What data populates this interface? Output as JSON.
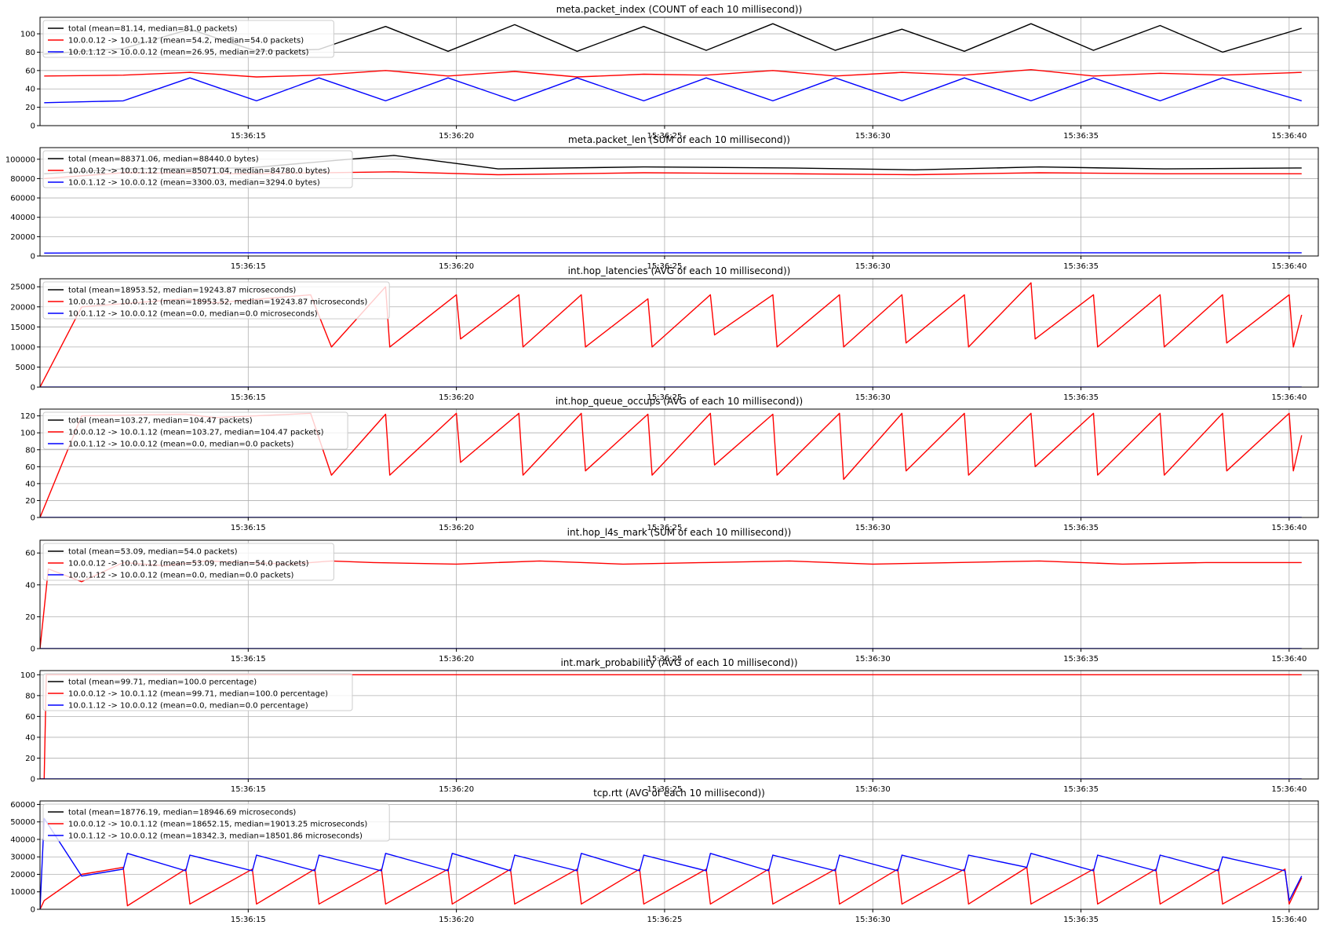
{
  "x_ticks": [
    "15:36:15",
    "15:36:20",
    "15:36:25",
    "15:36:30",
    "15:36:35",
    "15:36:40"
  ],
  "colors": {
    "total": "#000000",
    "fwd": "#ff0000",
    "rev": "#0000ff"
  },
  "chart_data": [
    {
      "type": "line",
      "title": "meta.packet_index (COUNT of each 10 millisecond))",
      "ylim": [
        0,
        118
      ],
      "yticks": [
        0,
        20,
        40,
        60,
        80,
        100
      ],
      "legend_position": "upper-left",
      "grid": true,
      "series": [
        {
          "name": "total (mean=81.14, median=81.0 packets)",
          "color": "#000000",
          "x": [
            "15:36:10.1",
            "15:36:12.0",
            "15:36:13.6",
            "15:36:15.2",
            "15:36:16.7",
            "15:36:18.3",
            "15:36:19.8",
            "15:36:21.4",
            "15:36:22.9",
            "15:36:24.5",
            "15:36:26.0",
            "15:36:27.6",
            "15:36:29.1",
            "15:36:30.7",
            "15:36:32.2",
            "15:36:33.8",
            "15:36:35.3",
            "15:36:36.9",
            "15:36:38.4",
            "15:36:40.3"
          ],
          "y": [
            78,
            84,
            105,
            81,
            83,
            108,
            81,
            110,
            81,
            108,
            82,
            111,
            82,
            105,
            81,
            111,
            82,
            109,
            80,
            106
          ]
        },
        {
          "name": "10.0.0.12 -> 10.0.1.12 (mean=54.2, median=54.0 packets)",
          "color": "#ff0000",
          "x": [
            "15:36:10.1",
            "15:36:12.0",
            "15:36:13.6",
            "15:36:15.2",
            "15:36:16.7",
            "15:36:18.3",
            "15:36:19.8",
            "15:36:21.4",
            "15:36:22.9",
            "15:36:24.5",
            "15:36:26.0",
            "15:36:27.6",
            "15:36:29.1",
            "15:36:30.7",
            "15:36:32.2",
            "15:36:33.8",
            "15:36:35.3",
            "15:36:36.9",
            "15:36:38.4",
            "15:36:40.3"
          ],
          "y": [
            54,
            55,
            58,
            53,
            55,
            60,
            54,
            59,
            53,
            56,
            55,
            60,
            54,
            58,
            55,
            61,
            54,
            57,
            55,
            58
          ]
        },
        {
          "name": "10.0.1.12 -> 10.0.0.12 (mean=26.95, median=27.0 packets)",
          "color": "#0000ff",
          "x": [
            "15:36:10.1",
            "15:36:12.0",
            "15:36:13.6",
            "15:36:15.2",
            "15:36:16.7",
            "15:36:18.3",
            "15:36:19.8",
            "15:36:21.4",
            "15:36:22.9",
            "15:36:24.5",
            "15:36:26.0",
            "15:36:27.6",
            "15:36:29.1",
            "15:36:30.7",
            "15:36:32.2",
            "15:36:33.8",
            "15:36:35.3",
            "15:36:36.9",
            "15:36:38.4",
            "15:36:40.3"
          ],
          "y": [
            25,
            27,
            52,
            27,
            52,
            27,
            52,
            27,
            52,
            27,
            52,
            27,
            52,
            27,
            52,
            27,
            52,
            27,
            52,
            27
          ]
        }
      ]
    },
    {
      "type": "line",
      "title": "meta.packet_len (SUM of each 10 millisecond))",
      "ylim": [
        0,
        112000
      ],
      "yticks": [
        0,
        20000,
        40000,
        60000,
        80000,
        100000
      ],
      "legend_position": "upper-left",
      "grid": true,
      "series": [
        {
          "name": "total (mean=88371.06, median=88440.0 bytes)",
          "color": "#000000",
          "x": [
            "15:36:10.1",
            "15:36:12.0",
            "15:36:15.0",
            "15:36:18.5",
            "15:36:21.0",
            "15:36:24.5",
            "15:36:28.0",
            "15:36:31.0",
            "15:36:34.0",
            "15:36:37.0",
            "15:36:40.3"
          ],
          "y": [
            85000,
            90000,
            91000,
            104000,
            90000,
            92000,
            91000,
            89000,
            92000,
            90000,
            91000
          ]
        },
        {
          "name": "10.0.0.12 -> 10.0.1.12 (mean=85071.04, median=84780.0 bytes)",
          "color": "#ff0000",
          "x": [
            "15:36:10.1",
            "15:36:12.0",
            "15:36:15.0",
            "15:36:18.5",
            "15:36:21.0",
            "15:36:24.5",
            "15:36:28.0",
            "15:36:31.0",
            "15:36:34.0",
            "15:36:37.0",
            "15:36:40.3"
          ],
          "y": [
            80000,
            86000,
            85000,
            87000,
            84000,
            86000,
            85000,
            84000,
            86000,
            85000,
            85000
          ]
        },
        {
          "name": "10.0.1.12 -> 10.0.0.12 (mean=3300.03, median=3294.0 bytes)",
          "color": "#0000ff",
          "x": [
            "15:36:10.1",
            "15:36:12.0",
            "15:36:15.0",
            "15:36:18.5",
            "15:36:21.0",
            "15:36:24.5",
            "15:36:28.0",
            "15:36:31.0",
            "15:36:34.0",
            "15:36:37.0",
            "15:36:40.3"
          ],
          "y": [
            3000,
            3300,
            3300,
            3300,
            3300,
            3300,
            3300,
            3300,
            3300,
            3300,
            3300
          ]
        }
      ]
    },
    {
      "type": "line",
      "title": "int.hop_latencies (AVG of each 10 millisecond))",
      "ylim": [
        0,
        27000
      ],
      "yticks": [
        0,
        5000,
        10000,
        15000,
        20000,
        25000
      ],
      "legend_position": "upper-left",
      "grid": true,
      "series": [
        {
          "name": "total (mean=18953.52, median=19243.87 microseconds)",
          "color": "#000000",
          "x": [],
          "y": []
        },
        {
          "name": "10.0.0.12 -> 10.0.1.12 (mean=18953.52, median=19243.87 microseconds)",
          "color": "#ff0000",
          "x": [
            "15:36:10.0",
            "15:36:11.0",
            "15:36:13.5",
            "15:36:14.2",
            "15:36:16.5",
            "15:36:17.0",
            "15:36:18.3",
            "15:36:18.4",
            "15:36:20.0",
            "15:36:20.1",
            "15:36:21.5",
            "15:36:21.6",
            "15:36:23.0",
            "15:36:23.1",
            "15:36:24.6",
            "15:36:24.7",
            "15:36:26.1",
            "15:36:26.2",
            "15:36:27.6",
            "15:36:27.7",
            "15:36:29.2",
            "15:36:29.3",
            "15:36:30.7",
            "15:36:30.8",
            "15:36:32.2",
            "15:36:32.3",
            "15:36:33.8",
            "15:36:33.9",
            "15:36:35.3",
            "15:36:35.4",
            "15:36:36.9",
            "15:36:37.0",
            "15:36:38.4",
            "15:36:38.5",
            "15:36:40.0",
            "15:36:40.1",
            "15:36:40.3"
          ],
          "y": [
            0,
            20000,
            22000,
            21000,
            23000,
            10000,
            25000,
            10000,
            23000,
            12000,
            23000,
            10000,
            23000,
            10000,
            22000,
            10000,
            23000,
            13000,
            23000,
            10000,
            23000,
            10000,
            23000,
            11000,
            23000,
            10000,
            26000,
            12000,
            23000,
            10000,
            23000,
            10000,
            23000,
            11000,
            23000,
            10000,
            18000
          ]
        },
        {
          "name": "10.0.1.12 -> 10.0.0.12 (mean=0.0, median=0.0 microseconds)",
          "color": "#0000ff",
          "x": [
            "15:36:10.0",
            "15:36:40.3"
          ],
          "y": [
            0,
            0
          ]
        }
      ]
    },
    {
      "type": "line",
      "title": "int.hop_queue_occups (AVG of each 10 millisecond))",
      "ylim": [
        0,
        128
      ],
      "yticks": [
        0,
        20,
        40,
        60,
        80,
        100,
        120
      ],
      "legend_position": "upper-left",
      "grid": true,
      "series": [
        {
          "name": "total (mean=103.27, median=104.47 packets)",
          "color": "#000000",
          "x": [],
          "y": []
        },
        {
          "name": "10.0.0.12 -> 10.0.1.12 (mean=103.27, median=104.47 packets)",
          "color": "#ff0000",
          "x": [
            "15:36:10.0",
            "15:36:11.0",
            "15:36:13.5",
            "15:36:14.2",
            "15:36:16.5",
            "15:36:17.0",
            "15:36:18.3",
            "15:36:18.4",
            "15:36:20.0",
            "15:36:20.1",
            "15:36:21.5",
            "15:36:21.6",
            "15:36:23.0",
            "15:36:23.1",
            "15:36:24.6",
            "15:36:24.7",
            "15:36:26.1",
            "15:36:26.2",
            "15:36:27.6",
            "15:36:27.7",
            "15:36:29.2",
            "15:36:29.3",
            "15:36:30.7",
            "15:36:30.8",
            "15:36:32.2",
            "15:36:32.3",
            "15:36:33.8",
            "15:36:33.9",
            "15:36:35.3",
            "15:36:35.4",
            "15:36:36.9",
            "15:36:37.0",
            "15:36:38.4",
            "15:36:38.5",
            "15:36:40.0",
            "15:36:40.1",
            "15:36:40.3"
          ],
          "y": [
            0,
            120,
            122,
            118,
            123,
            50,
            122,
            50,
            123,
            65,
            123,
            50,
            123,
            55,
            122,
            50,
            123,
            62,
            122,
            50,
            123,
            45,
            123,
            55,
            123,
            50,
            123,
            60,
            123,
            50,
            123,
            50,
            123,
            55,
            123,
            55,
            97
          ]
        },
        {
          "name": "10.0.1.12 -> 10.0.0.12 (mean=0.0, median=0.0 packets)",
          "color": "#0000ff",
          "x": [
            "15:36:10.0",
            "15:36:40.3"
          ],
          "y": [
            0,
            0
          ]
        }
      ]
    },
    {
      "type": "line",
      "title": "int.hop_l4s_mark (SUM of each 10 millisecond))",
      "ylim": [
        0,
        68
      ],
      "yticks": [
        0,
        20,
        40,
        60
      ],
      "legend_position": "upper-left",
      "grid": true,
      "series": [
        {
          "name": "total (mean=53.09, median=54.0 packets)",
          "color": "#000000",
          "x": [],
          "y": []
        },
        {
          "name": "10.0.0.12 -> 10.0.1.12 (mean=53.09, median=54.0 packets)",
          "color": "#ff0000",
          "x": [
            "15:36:10.0",
            "15:36:10.2",
            "15:36:11.0",
            "15:36:12.0",
            "15:36:13.0",
            "15:36:14.0",
            "15:36:15.0",
            "15:36:16.0",
            "15:36:17.0",
            "15:36:18.0",
            "15:36:20.0",
            "15:36:22.0",
            "15:36:24.0",
            "15:36:26.0",
            "15:36:28.0",
            "15:36:30.0",
            "15:36:32.0",
            "15:36:34.0",
            "15:36:36.0",
            "15:36:38.0",
            "15:36:40.3"
          ],
          "y": [
            0,
            50,
            42,
            54,
            52,
            55,
            54,
            53,
            55,
            54,
            53,
            55,
            53,
            54,
            55,
            53,
            54,
            55,
            53,
            54,
            54
          ]
        },
        {
          "name": "10.0.1.12 -> 10.0.0.12 (mean=0.0, median=0.0 packets)",
          "color": "#0000ff",
          "x": [
            "15:36:10.0",
            "15:36:40.3"
          ],
          "y": [
            0,
            0
          ]
        }
      ]
    },
    {
      "type": "line",
      "title": "int.mark_probability (AVG of each 10 millisecond))",
      "ylim": [
        0,
        104
      ],
      "yticks": [
        0,
        20,
        40,
        60,
        80,
        100
      ],
      "legend_position": "upper-left",
      "grid": true,
      "series": [
        {
          "name": "total (mean=99.71, median=100.0 percentage)",
          "color": "#000000",
          "x": [],
          "y": []
        },
        {
          "name": "10.0.0.12 -> 10.0.1.12 (mean=99.71, median=100.0 percentage)",
          "color": "#ff0000",
          "x": [
            "15:36:10.0",
            "15:36:10.1",
            "15:36:10.15",
            "15:36:40.3"
          ],
          "y": [
            0,
            0,
            100,
            100
          ]
        },
        {
          "name": "10.0.1.12 -> 10.0.0.12 (mean=0.0, median=0.0 percentage)",
          "color": "#0000ff",
          "x": [
            "15:36:10.0",
            "15:36:40.3"
          ],
          "y": [
            0,
            0
          ]
        }
      ]
    },
    {
      "type": "line",
      "title": "tcp.rtt (AVG of each 10 millisecond))",
      "ylim": [
        0,
        62000
      ],
      "yticks": [
        0,
        10000,
        20000,
        30000,
        40000,
        50000,
        60000
      ],
      "legend_position": "upper-left",
      "grid": true,
      "series": [
        {
          "name": "total (mean=18776.19, median=18946.69 microseconds)",
          "color": "#000000",
          "x": [],
          "y": []
        },
        {
          "name": "10.0.0.12 -> 10.0.1.12 (mean=18652.15, median=19013.25 microseconds)",
          "color": "#ff0000",
          "x": [
            "15:36:10.0",
            "15:36:10.1",
            "15:36:11.0",
            "15:36:12.0",
            "15:36:12.1",
            "15:36:13.5",
            "15:36:13.6",
            "15:36:15.1",
            "15:36:15.2",
            "15:36:16.6",
            "15:36:16.7",
            "15:36:18.2",
            "15:36:18.3",
            "15:36:19.8",
            "15:36:19.9",
            "15:36:21.3",
            "15:36:21.4",
            "15:36:22.9",
            "15:36:23.0",
            "15:36:24.4",
            "15:36:24.5",
            "15:36:26.0",
            "15:36:26.1",
            "15:36:27.5",
            "15:36:27.6",
            "15:36:29.1",
            "15:36:29.2",
            "15:36:30.6",
            "15:36:30.7",
            "15:36:32.2",
            "15:36:32.3",
            "15:36:33.7",
            "15:36:33.8",
            "15:36:35.3",
            "15:36:35.4",
            "15:36:36.8",
            "15:36:36.9",
            "15:36:38.3",
            "15:36:38.4",
            "15:36:39.9",
            "15:36:40.0",
            "15:36:40.3"
          ],
          "y": [
            0,
            5000,
            20000,
            24000,
            2000,
            23000,
            3000,
            23000,
            3000,
            23000,
            3000,
            23000,
            3000,
            23000,
            3000,
            23000,
            3000,
            23000,
            3000,
            23000,
            3000,
            23000,
            3000,
            23000,
            3000,
            23000,
            3000,
            23000,
            3000,
            23000,
            3000,
            24000,
            3000,
            23000,
            3000,
            23000,
            3000,
            23000,
            3000,
            23000,
            3000,
            18000
          ]
        },
        {
          "name": "10.0.1.12 -> 10.0.0.12 (mean=18342.3, median=18501.86 microseconds)",
          "color": "#0000ff",
          "x": [
            "15:36:10.0",
            "15:36:10.1",
            "15:36:11.0",
            "15:36:12.0",
            "15:36:12.1",
            "15:36:13.5",
            "15:36:13.6",
            "15:36:15.1",
            "15:36:15.2",
            "15:36:16.6",
            "15:36:16.7",
            "15:36:18.2",
            "15:36:18.3",
            "15:36:19.8",
            "15:36:19.9",
            "15:36:21.3",
            "15:36:21.4",
            "15:36:22.9",
            "15:36:23.0",
            "15:36:24.4",
            "15:36:24.5",
            "15:36:26.0",
            "15:36:26.1",
            "15:36:27.5",
            "15:36:27.6",
            "15:36:29.1",
            "15:36:29.2",
            "15:36:30.6",
            "15:36:30.7",
            "15:36:32.2",
            "15:36:32.3",
            "15:36:33.7",
            "15:36:33.8",
            "15:36:35.3",
            "15:36:35.4",
            "15:36:36.8",
            "15:36:36.9",
            "15:36:38.3",
            "15:36:38.4",
            "15:36:39.9",
            "15:36:40.0",
            "15:36:40.3"
          ],
          "y": [
            0,
            52000,
            19000,
            23000,
            32000,
            22000,
            31000,
            22000,
            31000,
            22000,
            31000,
            22000,
            32000,
            22000,
            32000,
            22000,
            31000,
            22000,
            32000,
            22000,
            31000,
            22000,
            32000,
            22000,
            31000,
            22000,
            31000,
            22000,
            31000,
            22000,
            31000,
            24000,
            32000,
            22000,
            31000,
            22000,
            31000,
            22000,
            30000,
            22000,
            5000,
            19000
          ]
        }
      ]
    }
  ]
}
